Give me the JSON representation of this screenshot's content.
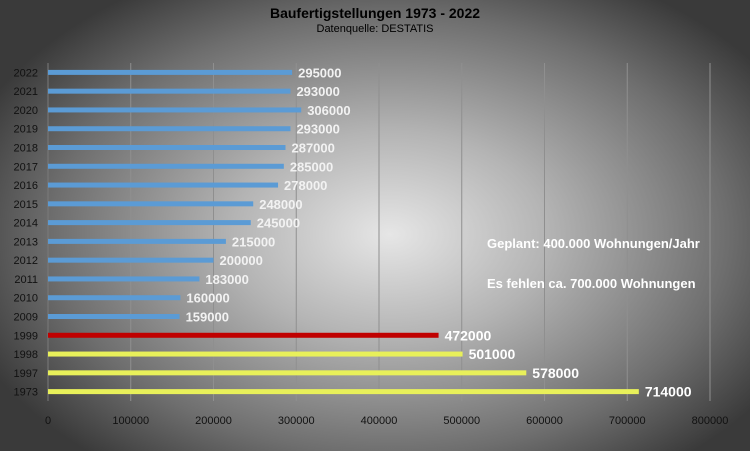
{
  "chart_data": {
    "type": "bar",
    "orientation": "horizontal",
    "title": "Baufertigstellungen 1973 - 2022",
    "subtitle": "Datenquelle: DESTATIS",
    "categories": [
      "2022",
      "2021",
      "2020",
      "2019",
      "2018",
      "2017",
      "2016",
      "2015",
      "2014",
      "2013",
      "2012",
      "2011",
      "2010",
      "2009",
      "1999",
      "1998",
      "1997",
      "1973"
    ],
    "values": [
      295000,
      293000,
      306000,
      293000,
      287000,
      285000,
      278000,
      248000,
      245000,
      215000,
      200000,
      183000,
      160000,
      159000,
      472000,
      501000,
      578000,
      714000
    ],
    "value_labels": [
      "295000",
      "293000",
      "306000",
      "293000",
      "287000",
      "285000",
      "278000",
      "248000",
      "245000",
      "215000",
      "200000",
      "183000",
      "160000",
      "159000",
      "472000",
      "501000",
      "578000",
      "714000"
    ],
    "bar_colors": [
      "#5b9bd5",
      "#5b9bd5",
      "#5b9bd5",
      "#5b9bd5",
      "#5b9bd5",
      "#5b9bd5",
      "#5b9bd5",
      "#5b9bd5",
      "#5b9bd5",
      "#5b9bd5",
      "#5b9bd5",
      "#5b9bd5",
      "#5b9bd5",
      "#5b9bd5",
      "#c00000",
      "#e8f05a",
      "#e8f05a",
      "#e8f05a"
    ],
    "xlim": [
      0,
      800000
    ],
    "x_ticks": [
      0,
      100000,
      200000,
      300000,
      400000,
      500000,
      600000,
      700000,
      800000
    ],
    "x_tick_labels": [
      "0",
      "100000",
      "200000",
      "300000",
      "400000",
      "500000",
      "600000",
      "700000",
      "800000"
    ],
    "grid": true,
    "xlabel": "",
    "ylabel": "",
    "annotations": [
      "Geplant: 400.000  Wohnungen/Jahr",
      "Es fehlen ca. 700.000 Wohnungen"
    ]
  }
}
